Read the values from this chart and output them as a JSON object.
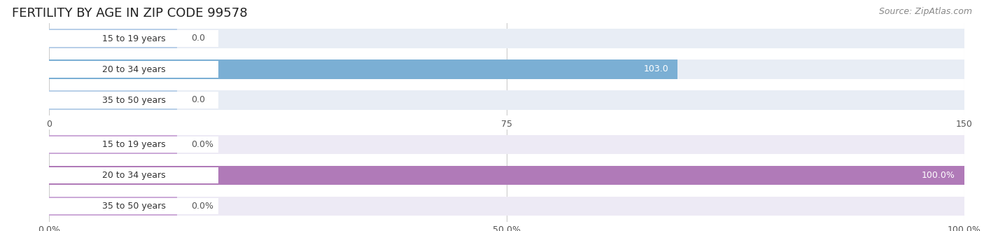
{
  "title": "FERTILITY BY AGE IN ZIP CODE 99578",
  "source": "Source: ZipAtlas.com",
  "top_chart": {
    "categories": [
      "15 to 19 years",
      "20 to 34 years",
      "35 to 50 years"
    ],
    "values": [
      0.0,
      103.0,
      0.0
    ],
    "xlim": [
      0,
      150
    ],
    "xticks": [
      0.0,
      75.0,
      150.0
    ],
    "bar_color_active": "#7bafd4",
    "bar_color_inactive": "#b8cfe8",
    "bar_bg_color": "#e8edf5",
    "label_bg_color": "#ffffff"
  },
  "bottom_chart": {
    "categories": [
      "15 to 19 years",
      "20 to 34 years",
      "35 to 50 years"
    ],
    "values": [
      0.0,
      100.0,
      0.0
    ],
    "xlim": [
      0,
      100
    ],
    "xticks": [
      0.0,
      50.0,
      100.0
    ],
    "xtick_labels": [
      "0.0%",
      "50.0%",
      "100.0%"
    ],
    "bar_color_active": "#b07ab8",
    "bar_color_inactive": "#ccaad8",
    "bar_bg_color": "#edeaf5",
    "label_bg_color": "#ffffff"
  },
  "label_color": "#333333",
  "value_color_inside": "#ffffff",
  "value_color_outside": "#555555",
  "title_fontsize": 13,
  "source_fontsize": 9,
  "label_fontsize": 9,
  "value_fontsize": 9,
  "tick_fontsize": 9,
  "bar_height": 0.62,
  "background_color": "#ffffff",
  "chart_bg_color": "#f0f2f8"
}
